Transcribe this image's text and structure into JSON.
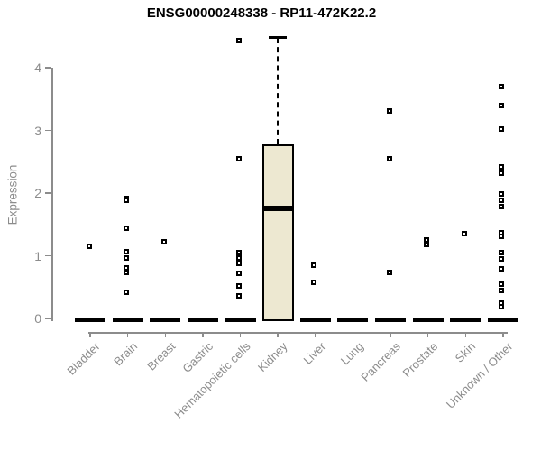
{
  "chart_data": {
    "type": "boxplot",
    "title": "ENSG00000248338 - RP11-472K22.2",
    "xlabel": "",
    "ylabel": "Expression",
    "ylim": [
      0,
      4.5
    ],
    "yticks": [
      0,
      1,
      2,
      3,
      4
    ],
    "grid": false,
    "legend": false,
    "box_fill_color": "#ede8d1",
    "box_border_color": "#000000",
    "axis_color": "#8c8c8c",
    "text_color": "#8c8c8c",
    "title_color": "#000000",
    "categories": [
      "Bladder",
      "Brain",
      "Breast",
      "Gastric",
      "Hematopoietic cells",
      "Kidney",
      "Liver",
      "Lung",
      "Pancreas",
      "Prostate",
      "Skin",
      "Unknown / Other"
    ],
    "boxes": [
      {
        "category": "Bladder",
        "q1": 0,
        "median": 0,
        "q3": 0,
        "whisker_high": 0,
        "outliers": [
          1.15
        ]
      },
      {
        "category": "Brain",
        "q1": 0,
        "median": 0,
        "q3": 0,
        "whisker_high": 0,
        "outliers": [
          1.92,
          1.88,
          1.44,
          1.06,
          0.96,
          0.8,
          0.73,
          0.42
        ]
      },
      {
        "category": "Breast",
        "q1": 0,
        "median": 0,
        "q3": 0,
        "whisker_high": 0,
        "outliers": [
          1.23
        ]
      },
      {
        "category": "Gastric",
        "q1": 0,
        "median": 0,
        "q3": 0,
        "whisker_high": 0,
        "outliers": []
      },
      {
        "category": "Hematopoietic cells",
        "q1": 0,
        "median": 0,
        "q3": 0,
        "whisker_high": 0,
        "outliers": [
          4.43,
          2.55,
          1.05,
          0.97,
          0.88,
          0.72,
          0.52,
          0.36
        ]
      },
      {
        "category": "Kidney",
        "q1": 0,
        "median": 1.75,
        "q3": 2.78,
        "whisker_high": 4.48,
        "outliers": []
      },
      {
        "category": "Liver",
        "q1": 0,
        "median": 0,
        "q3": 0,
        "whisker_high": 0,
        "outliers": [
          0.85,
          0.58
        ]
      },
      {
        "category": "Lung",
        "q1": 0,
        "median": 0,
        "q3": 0,
        "whisker_high": 0,
        "outliers": []
      },
      {
        "category": "Pancreas",
        "q1": 0,
        "median": 0,
        "q3": 0,
        "whisker_high": 0,
        "outliers": [
          3.31,
          2.55,
          0.74
        ]
      },
      {
        "category": "Prostate",
        "q1": 0,
        "median": 0,
        "q3": 0,
        "whisker_high": 0,
        "outliers": [
          1.25,
          1.18
        ]
      },
      {
        "category": "Skin",
        "q1": 0,
        "median": 0,
        "q3": 0,
        "whisker_high": 0,
        "outliers": [
          1.35
        ]
      },
      {
        "category": "Unknown / Other",
        "q1": 0,
        "median": 0,
        "q3": 0,
        "whisker_high": 0,
        "outliers": [
          3.7,
          3.39,
          3.02,
          2.42,
          2.32,
          1.99,
          1.89,
          1.79,
          1.37,
          1.31,
          1.05,
          0.95,
          0.79,
          0.55,
          0.45,
          0.25,
          0.18
        ]
      }
    ]
  }
}
